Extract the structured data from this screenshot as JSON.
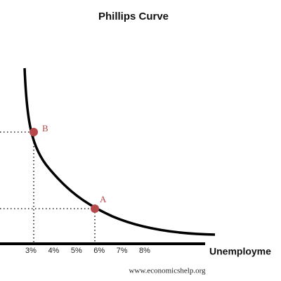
{
  "title": "Phillips Curve",
  "x_axis_label": "Unemployme",
  "x_ticks": [
    "3%",
    "4%",
    "5%",
    "6%",
    "7%",
    "8%"
  ],
  "points": [
    {
      "label": "B"
    },
    {
      "label": "A"
    }
  ],
  "footer": "www.economicshelp.org"
}
